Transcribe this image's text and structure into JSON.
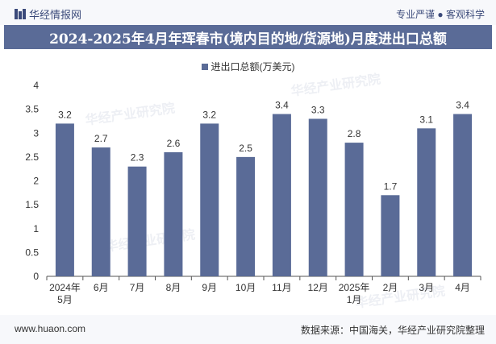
{
  "header": {
    "logo_text": "华经情报网",
    "slogan": "专业严谨 ● 客观科学"
  },
  "chart_title": "2024-2025年4月年珲春市(境内目的地/货源地)月度进出口总额",
  "footer": {
    "url": "www.huaon.com",
    "source": "数据来源：中国海关，华经产业研究院整理"
  },
  "watermark": "华经产业研究院",
  "colors": {
    "bar": "#5a6b97",
    "title_bg": "#5a6b97"
  },
  "chart_data": {
    "type": "bar",
    "title": "2024-2025年4月年珲春市(境内目的地/货源地)月度进出口总额",
    "categories": [
      "2024年5月",
      "6月",
      "7月",
      "8月",
      "9月",
      "10月",
      "11月",
      "12月",
      "2025年1月",
      "2月",
      "3月",
      "4月"
    ],
    "series": [
      {
        "name": "进出口总额(万美元)",
        "values": [
          3.2,
          2.7,
          2.3,
          2.6,
          3.2,
          2.5,
          3.4,
          3.3,
          2.8,
          1.7,
          3.1,
          3.4
        ]
      }
    ],
    "ylim": [
      0,
      4
    ],
    "yticks": [
      "0",
      "0.5",
      "1",
      "1.5",
      "2",
      "2.5",
      "3",
      "3.5",
      "4"
    ],
    "legend": "top-center",
    "grid": false
  }
}
